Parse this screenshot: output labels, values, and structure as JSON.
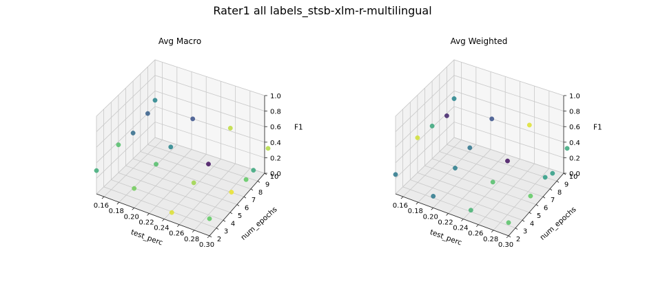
{
  "figure_title": "Rater1 all labels_stsb-xlm-r-multilingual",
  "chart_data": [
    {
      "type": "scatter3d",
      "title": "Avg Macro",
      "xlabel": "test_perc",
      "ylabel": "num_epochs",
      "zlabel": "F1",
      "xlim": [
        0.15,
        0.3
      ],
      "ylim": [
        2,
        10
      ],
      "zlim": [
        0.0,
        1.0
      ],
      "x_ticks": [
        "0.16",
        "0.18",
        "0.20",
        "0.22",
        "0.24",
        "0.26",
        "0.28",
        "0.30"
      ],
      "y_ticks": [
        "2",
        "3",
        "4",
        "5",
        "6",
        "7",
        "8",
        "9",
        "10"
      ],
      "z_ticks": [
        "0.0",
        "0.2",
        "0.4",
        "0.6",
        "0.8",
        "1.0"
      ],
      "grid": true,
      "colormap": "viridis",
      "points": [
        {
          "x": 0.15,
          "y": 2,
          "z": 0.3,
          "c": 0.62
        },
        {
          "x": 0.15,
          "y": 5,
          "z": 0.36,
          "c": 0.7
        },
        {
          "x": 0.15,
          "y": 7,
          "z": 0.33,
          "c": 0.35
        },
        {
          "x": 0.15,
          "y": 9,
          "z": 0.4,
          "c": 0.3
        },
        {
          "x": 0.15,
          "y": 10,
          "z": 0.48,
          "c": 0.45
        },
        {
          "x": 0.2,
          "y": 2,
          "z": 0.25,
          "c": 0.78
        },
        {
          "x": 0.2,
          "y": 5,
          "z": 0.29,
          "c": 0.7
        },
        {
          "x": 0.2,
          "y": 7,
          "z": 0.33,
          "c": 0.45
        },
        {
          "x": 0.2,
          "y": 10,
          "z": 0.42,
          "c": 0.25
        },
        {
          "x": 0.25,
          "y": 2,
          "z": 0.12,
          "c": 0.95
        },
        {
          "x": 0.25,
          "y": 5,
          "z": 0.23,
          "c": 0.85
        },
        {
          "x": 0.25,
          "y": 7,
          "z": 0.29,
          "c": 0.05
        },
        {
          "x": 0.25,
          "y": 10,
          "z": 0.48,
          "c": 0.9
        },
        {
          "x": 0.3,
          "y": 2,
          "z": 0.22,
          "c": 0.75
        },
        {
          "x": 0.3,
          "y": 5,
          "z": 0.29,
          "c": 0.97
        },
        {
          "x": 0.3,
          "y": 7,
          "z": 0.27,
          "c": 0.75
        },
        {
          "x": 0.3,
          "y": 8,
          "z": 0.3,
          "c": 0.6
        },
        {
          "x": 0.3,
          "y": 10,
          "z": 0.4,
          "c": 0.88
        }
      ]
    },
    {
      "type": "scatter3d",
      "title": "Avg Weighted",
      "xlabel": "test_perc",
      "ylabel": "num_epochs",
      "zlabel": "F1",
      "xlim": [
        0.15,
        0.3
      ],
      "ylim": [
        2,
        10
      ],
      "zlim": [
        0.0,
        1.0
      ],
      "x_ticks": [
        "0.16",
        "0.18",
        "0.20",
        "0.22",
        "0.24",
        "0.26",
        "0.28",
        "0.30"
      ],
      "y_ticks": [
        "2",
        "3",
        "4",
        "5",
        "6",
        "7",
        "8",
        "9",
        "10"
      ],
      "z_ticks": [
        "0.0",
        "0.2",
        "0.4",
        "0.6",
        "0.8",
        "1.0"
      ],
      "grid": true,
      "colormap": "viridis",
      "points": [
        {
          "x": 0.15,
          "y": 2,
          "z": 0.25,
          "c": 0.4
        },
        {
          "x": 0.15,
          "y": 5,
          "z": 0.45,
          "c": 0.93
        },
        {
          "x": 0.15,
          "y": 7,
          "z": 0.42,
          "c": 0.6
        },
        {
          "x": 0.15,
          "y": 9,
          "z": 0.37,
          "c": 0.1
        },
        {
          "x": 0.15,
          "y": 10,
          "z": 0.5,
          "c": 0.45
        },
        {
          "x": 0.2,
          "y": 2,
          "z": 0.15,
          "c": 0.4
        },
        {
          "x": 0.2,
          "y": 5,
          "z": 0.24,
          "c": 0.42
        },
        {
          "x": 0.2,
          "y": 7,
          "z": 0.32,
          "c": 0.38
        },
        {
          "x": 0.2,
          "y": 10,
          "z": 0.42,
          "c": 0.25
        },
        {
          "x": 0.25,
          "y": 2,
          "z": 0.15,
          "c": 0.65
        },
        {
          "x": 0.25,
          "y": 5,
          "z": 0.24,
          "c": 0.7
        },
        {
          "x": 0.25,
          "y": 7,
          "z": 0.33,
          "c": 0.05
        },
        {
          "x": 0.25,
          "y": 10,
          "z": 0.52,
          "c": 0.95
        },
        {
          "x": 0.3,
          "y": 2,
          "z": 0.17,
          "c": 0.72
        },
        {
          "x": 0.3,
          "y": 5,
          "z": 0.24,
          "c": 0.75
        },
        {
          "x": 0.3,
          "y": 7,
          "z": 0.3,
          "c": 0.55
        },
        {
          "x": 0.3,
          "y": 8,
          "z": 0.26,
          "c": 0.55
        },
        {
          "x": 0.3,
          "y": 10,
          "z": 0.4,
          "c": 0.6
        }
      ]
    }
  ]
}
